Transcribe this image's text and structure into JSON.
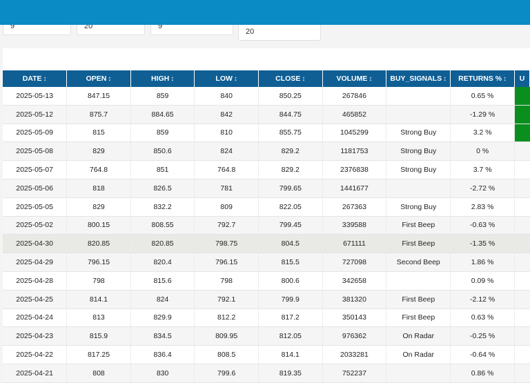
{
  "inputs": [
    "9",
    "20",
    "9",
    "20"
  ],
  "table": {
    "columns": [
      "DATE",
      "OPEN",
      "HIGH",
      "LOW",
      "CLOSE",
      "VOLUME",
      "BUY_SIGNALS",
      "RETURNS %",
      "U"
    ],
    "sort_icon": "sort-arrows-icon",
    "sort_glyph": "↕",
    "rows": [
      {
        "date": "2025-05-13",
        "open": "847.15",
        "high": "859",
        "low": "840",
        "close": "850.25",
        "volume": "267846",
        "signal": "",
        "returns": "0.65 %"
      },
      {
        "date": "2025-05-12",
        "open": "875.7",
        "high": "884.65",
        "low": "842",
        "close": "844.75",
        "volume": "465852",
        "signal": "",
        "returns": "-1.29 %"
      },
      {
        "date": "2025-05-09",
        "open": "815",
        "high": "859",
        "low": "810",
        "close": "855.75",
        "volume": "1045299",
        "signal": "Strong Buy",
        "returns": "3.2 %"
      },
      {
        "date": "2025-05-08",
        "open": "829",
        "high": "850.6",
        "low": "824",
        "close": "829.2",
        "volume": "1181753",
        "signal": "Strong Buy",
        "returns": "0 %"
      },
      {
        "date": "2025-05-07",
        "open": "764.8",
        "high": "851",
        "low": "764.8",
        "close": "829.2",
        "volume": "2376838",
        "signal": "Strong Buy",
        "returns": "3.7 %"
      },
      {
        "date": "2025-05-06",
        "open": "818",
        "high": "826.5",
        "low": "781",
        "close": "799.65",
        "volume": "1441677",
        "signal": "",
        "returns": "-2.72 %"
      },
      {
        "date": "2025-05-05",
        "open": "829",
        "high": "832.2",
        "low": "809",
        "close": "822.05",
        "volume": "267363",
        "signal": "Strong Buy",
        "returns": "2.83 %"
      },
      {
        "date": "2025-05-02",
        "open": "800.15",
        "high": "808.55",
        "low": "792.7",
        "close": "799.45",
        "volume": "339588",
        "signal": "First Beep",
        "returns": "-0.63 %"
      },
      {
        "date": "2025-04-30",
        "open": "820.85",
        "high": "820.85",
        "low": "798.75",
        "close": "804.5",
        "volume": "671111",
        "signal": "First Beep",
        "returns": "-1.35 %"
      },
      {
        "date": "2025-04-29",
        "open": "796.15",
        "high": "820.4",
        "low": "796.15",
        "close": "815.5",
        "volume": "727098",
        "signal": "Second Beep",
        "returns": "1.86 %"
      },
      {
        "date": "2025-04-28",
        "open": "798",
        "high": "815.6",
        "low": "798",
        "close": "800.6",
        "volume": "342658",
        "signal": "",
        "returns": "0.09 %"
      },
      {
        "date": "2025-04-25",
        "open": "814.1",
        "high": "824",
        "low": "792.1",
        "close": "799.9",
        "volume": "381320",
        "signal": "First Beep",
        "returns": "-2.12 %"
      },
      {
        "date": "2025-04-24",
        "open": "813",
        "high": "829.9",
        "low": "812.2",
        "close": "817.2",
        "volume": "350143",
        "signal": "First Beep",
        "returns": "0.63 %"
      },
      {
        "date": "2025-04-23",
        "open": "815.9",
        "high": "834.5",
        "low": "809.95",
        "close": "812.05",
        "volume": "976362",
        "signal": "On Radar",
        "returns": "-0.25 %"
      },
      {
        "date": "2025-04-22",
        "open": "817.25",
        "high": "836.4",
        "low": "808.5",
        "close": "814.1",
        "volume": "2033281",
        "signal": "On Radar",
        "returns": "-0.64 %"
      },
      {
        "date": "2025-04-21",
        "open": "808",
        "high": "830",
        "low": "799.6",
        "close": "819.35",
        "volume": "752237",
        "signal": "",
        "returns": "0.86 %"
      }
    ],
    "highlight_row": 8,
    "green_rows": [
      0,
      1,
      2
    ],
    "colors": {
      "header": "#0f5f95",
      "topbar": "#0a8bc5",
      "indicator": "#0a8f1e",
      "row_highlight": "#e9e9e5"
    }
  }
}
